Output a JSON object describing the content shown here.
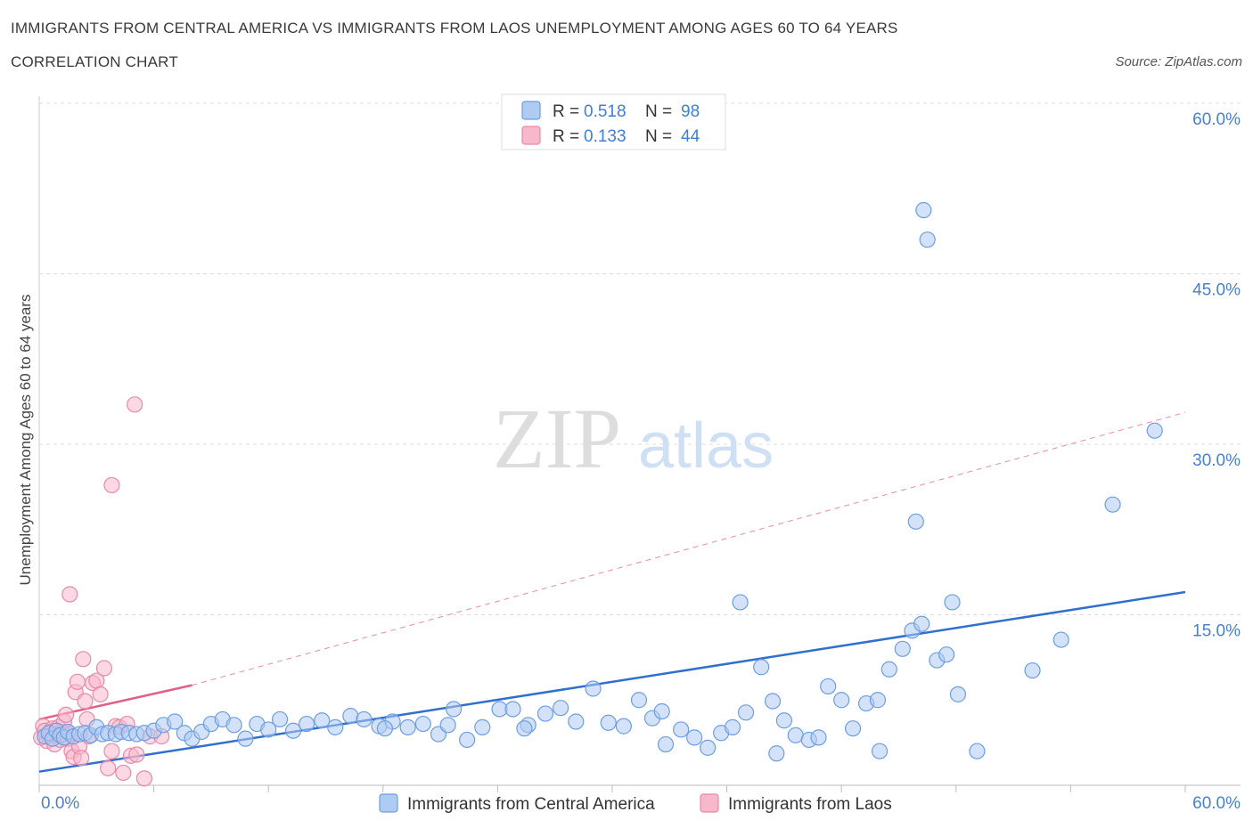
{
  "header": {
    "title": "IMMIGRANTS FROM CENTRAL AMERICA VS IMMIGRANTS FROM LAOS UNEMPLOYMENT AMONG AGES 60 TO 64 YEARS",
    "subtitle": "CORRELATION CHART",
    "source": "Source: ZipAtlas.com"
  },
  "watermark": {
    "zip": "ZIP",
    "atlas": "atlas"
  },
  "colors": {
    "blue_fill": "#aecbf2",
    "blue_stroke": "#6d9ee0",
    "blue_line": "#2f6fce",
    "pink_fill": "#f7b8cc",
    "pink_stroke": "#e88aa8",
    "pink_line": "#e0608a",
    "grid": "#dcdcdc",
    "tick_text": "#4a7fcf"
  },
  "legend_top": {
    "rows": [
      {
        "r_label": "R = ",
        "r_value": "0.518",
        "n_label": "N = ",
        "n_value": "98"
      },
      {
        "r_label": "R = ",
        "r_value": "0.133",
        "n_label": "N = ",
        "n_value": "44"
      }
    ]
  },
  "legend_bottom": {
    "items": [
      {
        "label": "Immigrants from Central America"
      },
      {
        "label": "Immigrants from Laos"
      }
    ]
  },
  "chart_data": {
    "type": "scatter",
    "title": "IMMIGRANTS FROM CENTRAL AMERICA VS IMMIGRANTS FROM LAOS UNEMPLOYMENT AMONG AGES 60 TO 64 YEARS",
    "xlabel": "",
    "ylabel": "Unemployment Among Ages 60 to 64 years",
    "xlim": [
      0,
      60
    ],
    "ylim": [
      0,
      60
    ],
    "x_tick_labels": [
      "0.0%",
      "60.0%"
    ],
    "y_ticks": [
      15,
      30,
      45,
      60
    ],
    "y_tick_labels": [
      "15.0%",
      "30.0%",
      "45.0%",
      "60.0%"
    ],
    "grid": true,
    "legend_position": "top-center",
    "series": [
      {
        "name": "Immigrants from Central America",
        "R": 0.518,
        "N": 98,
        "trend": {
          "x": [
            0,
            60
          ],
          "y": [
            1.2,
            17.0
          ],
          "style": "solid"
        },
        "points": [
          [
            0.3,
            4.3
          ],
          [
            0.5,
            4.6
          ],
          [
            0.7,
            4.1
          ],
          [
            0.9,
            4.8
          ],
          [
            1.1,
            4.4
          ],
          [
            1.3,
            4.2
          ],
          [
            1.5,
            4.7
          ],
          [
            1.8,
            4.3
          ],
          [
            2.1,
            4.5
          ],
          [
            2.4,
            4.6
          ],
          [
            2.7,
            4.4
          ],
          [
            3.0,
            5.1
          ],
          [
            3.3,
            4.5
          ],
          [
            3.6,
            4.6
          ],
          [
            4.0,
            4.5
          ],
          [
            4.3,
            4.7
          ],
          [
            4.7,
            4.6
          ],
          [
            5.1,
            4.5
          ],
          [
            5.5,
            4.6
          ],
          [
            6.0,
            4.8
          ],
          [
            6.5,
            5.3
          ],
          [
            7.1,
            5.6
          ],
          [
            7.6,
            4.6
          ],
          [
            8.0,
            4.1
          ],
          [
            8.5,
            4.7
          ],
          [
            9.0,
            5.4
          ],
          [
            9.6,
            5.8
          ],
          [
            10.2,
            5.3
          ],
          [
            10.8,
            4.1
          ],
          [
            11.4,
            5.4
          ],
          [
            12.0,
            4.9
          ],
          [
            12.6,
            5.8
          ],
          [
            13.3,
            4.8
          ],
          [
            14.0,
            5.4
          ],
          [
            14.8,
            5.7
          ],
          [
            15.5,
            5.1
          ],
          [
            16.3,
            6.1
          ],
          [
            17.0,
            5.8
          ],
          [
            17.8,
            5.2
          ],
          [
            18.5,
            5.6
          ],
          [
            19.3,
            5.1
          ],
          [
            20.1,
            5.4
          ],
          [
            20.9,
            4.5
          ],
          [
            21.7,
            6.7
          ],
          [
            22.4,
            4.0
          ],
          [
            23.2,
            5.1
          ],
          [
            24.1,
            6.7
          ],
          [
            24.8,
            6.7
          ],
          [
            25.6,
            5.3
          ],
          [
            26.5,
            6.3
          ],
          [
            27.3,
            6.8
          ],
          [
            28.1,
            5.6
          ],
          [
            29.0,
            8.5
          ],
          [
            29.8,
            5.5
          ],
          [
            30.6,
            5.2
          ],
          [
            31.4,
            7.5
          ],
          [
            32.1,
            5.9
          ],
          [
            32.8,
            3.6
          ],
          [
            33.6,
            4.9
          ],
          [
            34.3,
            4.2
          ],
          [
            35.0,
            3.3
          ],
          [
            35.7,
            4.6
          ],
          [
            36.3,
            5.1
          ],
          [
            37.0,
            6.4
          ],
          [
            37.8,
            10.4
          ],
          [
            38.4,
            7.4
          ],
          [
            39.0,
            5.7
          ],
          [
            39.6,
            4.4
          ],
          [
            40.3,
            4.0
          ],
          [
            40.8,
            4.2
          ],
          [
            41.3,
            8.7
          ],
          [
            42.0,
            7.5
          ],
          [
            42.6,
            5.0
          ],
          [
            43.3,
            7.2
          ],
          [
            43.9,
            7.5
          ],
          [
            44.5,
            10.2
          ],
          [
            45.2,
            12.0
          ],
          [
            45.7,
            13.6
          ],
          [
            46.2,
            14.2
          ],
          [
            47.0,
            11.0
          ],
          [
            47.5,
            11.5
          ],
          [
            48.1,
            8.0
          ],
          [
            49.1,
            3.0
          ],
          [
            52.0,
            10.1
          ],
          [
            53.5,
            12.8
          ],
          [
            56.2,
            24.7
          ],
          [
            58.4,
            31.2
          ],
          [
            44.0,
            3.0
          ],
          [
            46.5,
            48.0
          ],
          [
            46.3,
            50.6
          ],
          [
            36.7,
            16.1
          ],
          [
            47.8,
            16.1
          ],
          [
            45.9,
            23.2
          ],
          [
            38.6,
            2.8
          ],
          [
            32.6,
            6.5
          ],
          [
            21.4,
            5.3
          ],
          [
            25.4,
            5.0
          ],
          [
            18.1,
            5.0
          ]
        ]
      },
      {
        "name": "Immigrants from Laos",
        "R": 0.133,
        "N": 44,
        "trend": {
          "x": [
            0,
            8
          ],
          "y": [
            5.8,
            8.8
          ],
          "style": "solid",
          "extended_to": [
            60,
            32.8
          ],
          "extended_style": "dashed"
        },
        "points": [
          [
            0.1,
            4.2
          ],
          [
            0.2,
            5.2
          ],
          [
            0.3,
            4.8
          ],
          [
            0.4,
            3.9
          ],
          [
            0.5,
            4.3
          ],
          [
            0.6,
            4.6
          ],
          [
            0.7,
            5.0
          ],
          [
            0.8,
            3.6
          ],
          [
            0.9,
            4.4
          ],
          [
            1.0,
            5.1
          ],
          [
            1.1,
            4.0
          ],
          [
            1.2,
            4.7
          ],
          [
            1.3,
            5.6
          ],
          [
            1.4,
            6.2
          ],
          [
            1.5,
            4.1
          ],
          [
            1.6,
            4.5
          ],
          [
            1.7,
            3.0
          ],
          [
            1.8,
            2.5
          ],
          [
            1.9,
            8.2
          ],
          [
            2.0,
            9.1
          ],
          [
            2.1,
            3.4
          ],
          [
            2.2,
            2.4
          ],
          [
            2.3,
            11.1
          ],
          [
            2.4,
            7.4
          ],
          [
            2.5,
            5.8
          ],
          [
            2.6,
            4.3
          ],
          [
            2.8,
            9.0
          ],
          [
            3.0,
            9.2
          ],
          [
            3.2,
            8.0
          ],
          [
            3.4,
            10.3
          ],
          [
            3.6,
            1.5
          ],
          [
            3.8,
            3.0
          ],
          [
            4.0,
            5.2
          ],
          [
            4.2,
            5.1
          ],
          [
            4.4,
            1.1
          ],
          [
            4.6,
            5.4
          ],
          [
            4.8,
            2.6
          ],
          [
            5.1,
            2.7
          ],
          [
            5.5,
            0.6
          ],
          [
            5.8,
            4.3
          ],
          [
            1.6,
            16.8
          ],
          [
            3.8,
            26.4
          ],
          [
            5.0,
            33.5
          ],
          [
            6.4,
            4.3
          ]
        ]
      }
    ]
  }
}
